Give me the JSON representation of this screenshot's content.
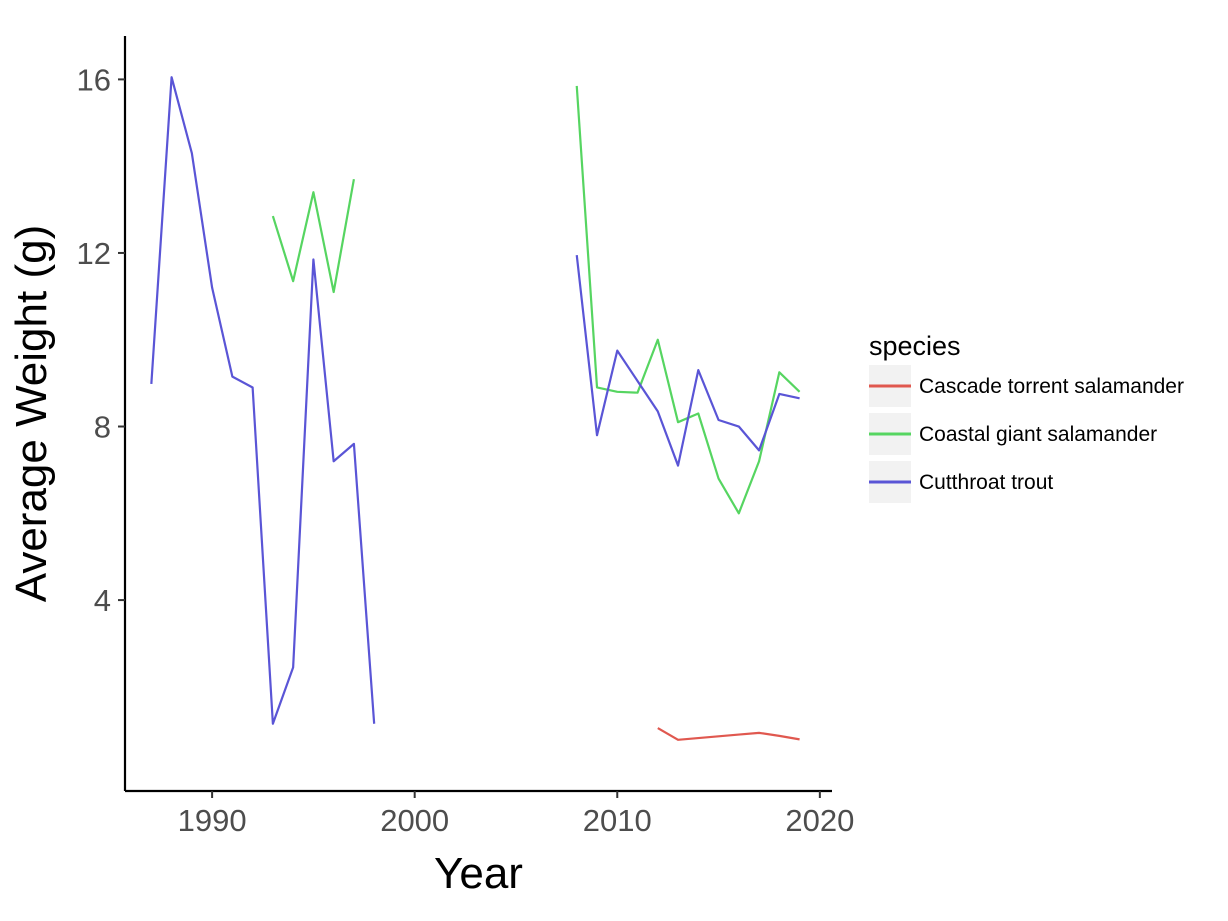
{
  "chart_data": {
    "type": "line",
    "xlabel": "Year",
    "ylabel": "Average Weight (g)",
    "xlim": [
      1985.7,
      2020.6
    ],
    "ylim": [
      -0.4,
      17.0
    ],
    "xticks": [
      1990,
      2000,
      2010,
      2020
    ],
    "yticks": [
      4,
      8,
      12,
      16
    ],
    "grid": false,
    "legend": {
      "title": "species",
      "position": "right"
    },
    "series": [
      {
        "name": "Cascade torrent salamander",
        "color": "#e0584f",
        "points": [
          [
            [
              2012,
              1.05
            ],
            [
              2013,
              0.78
            ],
            [
              2014,
              0.82
            ],
            [
              2015,
              0.86
            ],
            [
              2016,
              0.9
            ],
            [
              2017,
              0.94
            ],
            [
              2018,
              0.87
            ],
            [
              2019,
              0.79
            ]
          ]
        ]
      },
      {
        "name": "Coastal giant salamander",
        "color": "#56d561",
        "points": [
          [
            [
              1993,
              12.85
            ],
            [
              1994,
              11.35
            ],
            [
              1995,
              13.4
            ],
            [
              1996,
              11.1
            ],
            [
              1997,
              13.7
            ]
          ],
          [
            [
              2008,
              15.85
            ],
            [
              2009,
              8.9
            ],
            [
              2010,
              8.8
            ],
            [
              2011,
              8.78
            ],
            [
              2012,
              10.0
            ],
            [
              2013,
              8.1
            ],
            [
              2014,
              8.3
            ],
            [
              2015,
              6.8
            ],
            [
              2016,
              6.0
            ],
            [
              2017,
              7.2
            ],
            [
              2018,
              9.25
            ],
            [
              2019,
              8.8
            ]
          ]
        ]
      },
      {
        "name": "Cutthroat trout",
        "color": "#5a55d6",
        "points": [
          [
            [
              1987,
              8.98
            ],
            [
              1988,
              16.05
            ],
            [
              1989,
              14.3
            ],
            [
              1990,
              11.2
            ],
            [
              1991,
              9.15
            ],
            [
              1992,
              8.9
            ],
            [
              1993,
              1.15
            ],
            [
              1994,
              2.45
            ],
            [
              1995,
              11.85
            ],
            [
              1996,
              7.2
            ],
            [
              1997,
              7.6
            ],
            [
              1998,
              1.15
            ]
          ],
          [
            [
              2008,
              11.95
            ],
            [
              2009,
              7.8
            ],
            [
              2010,
              9.75
            ],
            [
              2011,
              9.05
            ],
            [
              2012,
              8.35
            ],
            [
              2013,
              7.1
            ],
            [
              2014,
              9.3
            ],
            [
              2015,
              8.15
            ],
            [
              2016,
              8.0
            ],
            [
              2017,
              7.45
            ],
            [
              2018,
              8.75
            ],
            [
              2019,
              8.65
            ]
          ]
        ]
      }
    ]
  }
}
